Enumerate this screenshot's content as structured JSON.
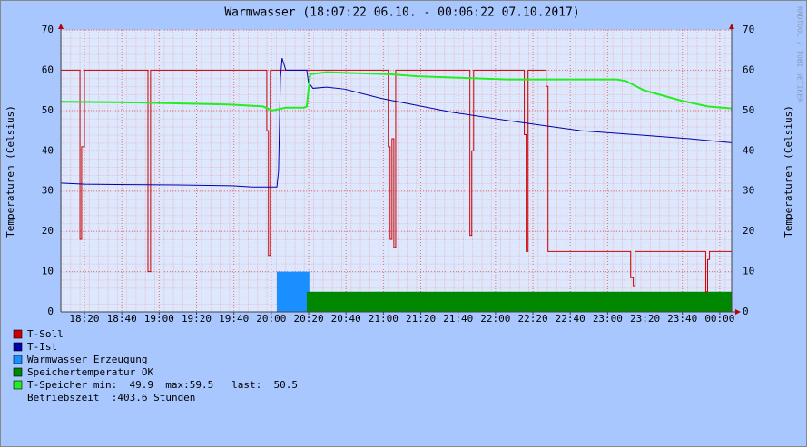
{
  "chart_data": {
    "type": "line",
    "title": "Warmwasser (18:07:22 06.10. - 00:06:22 07.10.2017)",
    "y_label": "Temperaturen (Celsius)",
    "watermark": "RRDTOOL / TOBI OETIKER",
    "xlim": [
      1087.37,
      1446.37
    ],
    "xticks": [
      {
        "value": 1100,
        "label": "18:20"
      },
      {
        "value": 1120,
        "label": "18:40"
      },
      {
        "value": 1140,
        "label": "19:00"
      },
      {
        "value": 1160,
        "label": "19:20"
      },
      {
        "value": 1180,
        "label": "19:40"
      },
      {
        "value": 1200,
        "label": "20:00"
      },
      {
        "value": 1220,
        "label": "20:20"
      },
      {
        "value": 1240,
        "label": "20:40"
      },
      {
        "value": 1260,
        "label": "21:00"
      },
      {
        "value": 1280,
        "label": "21:20"
      },
      {
        "value": 1300,
        "label": "21:40"
      },
      {
        "value": 1320,
        "label": "22:00"
      },
      {
        "value": 1340,
        "label": "22:20"
      },
      {
        "value": 1360,
        "label": "22:40"
      },
      {
        "value": 1380,
        "label": "23:00"
      },
      {
        "value": 1400,
        "label": "23:20"
      },
      {
        "value": 1420,
        "label": "23:40"
      },
      {
        "value": 1440,
        "label": "00:00"
      }
    ],
    "ylim": [
      0,
      70
    ],
    "yticks": [
      0,
      10,
      20,
      30,
      40,
      50,
      60,
      70
    ],
    "grid": true,
    "series": [
      {
        "name": "T-Soll",
        "color": "#cc0000",
        "style": "line",
        "step": true,
        "x": [
          1087.4,
          1097.6,
          1098.5,
          1100,
          1134,
          1135.4,
          1197.6,
          1198.5,
          1199.5,
          1262.6,
          1263.6,
          1264.6,
          1265.6,
          1266.6,
          1306.3,
          1307.3,
          1308.3,
          1335.4,
          1336.4,
          1337.4,
          1347.1,
          1348.1,
          1392.3,
          1393.7,
          1394.7,
          1432.5,
          1433.5,
          1434.5,
          1446.4
        ],
        "values": [
          60,
          18,
          41,
          60,
          10,
          60,
          45,
          14,
          60,
          41,
          18,
          43,
          16,
          60,
          19,
          40,
          60,
          44,
          15,
          60,
          56,
          15,
          8.5,
          6.5,
          15,
          5,
          13,
          15,
          15
        ]
      },
      {
        "name": "T-Ist",
        "color": "#0000aa",
        "style": "line",
        "step": false,
        "x": [
          1087.4,
          1100,
          1150,
          1180,
          1190,
          1203,
          1203.9,
          1204.9,
          1205.8,
          1207.8,
          1219,
          1219.9,
          1222.3,
          1229.6,
          1239.3,
          1258.7,
          1297.6,
          1326.7,
          1365.5,
          1394.7,
          1423.8,
          1446.4
        ],
        "values": [
          32,
          31.7,
          31.5,
          31.3,
          31,
          31,
          35,
          58,
          63,
          60,
          60,
          57,
          55.5,
          55.8,
          55.3,
          53,
          49.5,
          47.5,
          45,
          44,
          43,
          42
        ]
      },
      {
        "name": "Warmwasser Erzeugung",
        "color": "#1a8fff",
        "style": "area",
        "step": true,
        "x": [
          1203,
          1220.4
        ],
        "values": [
          10,
          10
        ]
      },
      {
        "name": "Speichertemperatur OK",
        "color": "#008800",
        "style": "area",
        "step": true,
        "x": [
          1219,
          1446.4
        ],
        "values": [
          5,
          5
        ]
      },
      {
        "name": "T-Speicher",
        "color": "#22ee22",
        "style": "line",
        "step": false,
        "x": [
          1087.4,
          1127.7,
          1176.2,
          1195.6,
          1200.5,
          1207.8,
          1217.5,
          1219,
          1219.9,
          1220.9,
          1229.6,
          1263.6,
          1278.1,
          1307.3,
          1326.7,
          1385,
          1389.8,
          1399.5,
          1418.9,
          1433.5,
          1446.4
        ],
        "values": [
          52.2,
          52,
          51.5,
          51,
          50,
          50.7,
          50.7,
          51,
          55,
          59,
          59.5,
          59,
          58.5,
          58,
          57.7,
          57.7,
          57.3,
          55,
          52.5,
          51,
          50.5
        ]
      }
    ],
    "legend_stats": "min:  49.9  max:59.5   last:  50.5",
    "footer": "Betriebszeit  :403.6 Stunden"
  }
}
